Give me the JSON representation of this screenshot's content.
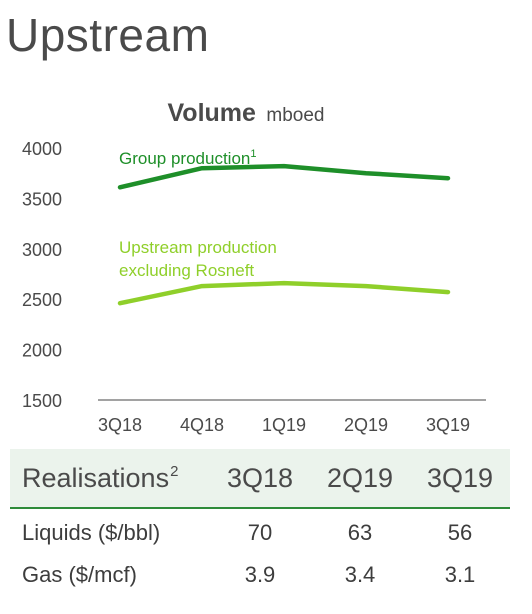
{
  "page": {
    "title": "Upstream"
  },
  "chart_data": {
    "type": "line",
    "title": "Volume",
    "title_unit": "mboed",
    "categories": [
      "3Q18",
      "4Q18",
      "1Q19",
      "2Q19",
      "3Q19"
    ],
    "ylim": [
      1500,
      4000
    ],
    "yticks": [
      1500,
      2000,
      2500,
      3000,
      3500,
      4000
    ],
    "grid": false,
    "series": [
      {
        "name": "Group production",
        "name_sup": "1",
        "color": "#1e8f29",
        "values": [
          3610,
          3800,
          3820,
          3750,
          3700
        ]
      },
      {
        "name": "Upstream production excluding Rosneft",
        "label_lines": [
          "Upstream production",
          "excluding Rosneft"
        ],
        "color": "#8fcf2a",
        "values": [
          2460,
          2630,
          2660,
          2630,
          2570
        ]
      }
    ]
  },
  "table": {
    "header": {
      "label": "Realisations",
      "label_sup": "2",
      "cols": [
        "3Q18",
        "2Q19",
        "3Q19"
      ]
    },
    "rows": [
      {
        "label": "Liquids ($/bbl)",
        "values": [
          "70",
          "63",
          "56"
        ]
      },
      {
        "label": "Gas ($/mcf)",
        "values": [
          "3.9",
          "3.4",
          "3.1"
        ]
      }
    ]
  }
}
